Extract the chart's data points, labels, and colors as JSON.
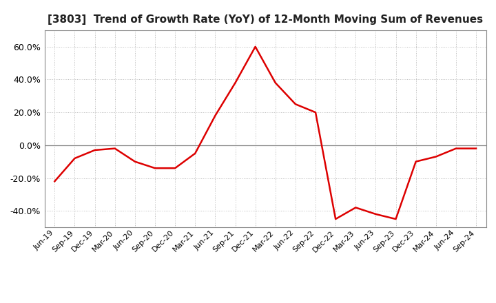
{
  "title": "[3803]  Trend of Growth Rate (YoY) of 12-Month Moving Sum of Revenues",
  "title_fontsize": 11,
  "line_color": "#dd0000",
  "background_color": "#ffffff",
  "grid_color": "#bbbbbb",
  "grid_style": "dotted",
  "ylim": [
    -0.5,
    0.7
  ],
  "yticks": [
    -0.4,
    -0.2,
    0.0,
    0.2,
    0.4,
    0.6
  ],
  "dates": [
    "Jun-19",
    "Sep-19",
    "Dec-19",
    "Mar-20",
    "Jun-20",
    "Sep-20",
    "Dec-20",
    "Mar-21",
    "Jun-21",
    "Sep-21",
    "Dec-21",
    "Mar-22",
    "Jun-22",
    "Sep-22",
    "Dec-22",
    "Mar-23",
    "Jun-23",
    "Sep-23",
    "Dec-23",
    "Mar-24",
    "Jun-24",
    "Sep-24"
  ],
  "values": [
    -0.22,
    -0.08,
    -0.03,
    -0.02,
    -0.1,
    -0.14,
    -0.14,
    -0.05,
    0.18,
    0.38,
    0.6,
    0.38,
    0.25,
    0.2,
    -0.45,
    -0.38,
    -0.42,
    -0.45,
    -0.1,
    -0.07,
    -0.02,
    -0.02
  ]
}
